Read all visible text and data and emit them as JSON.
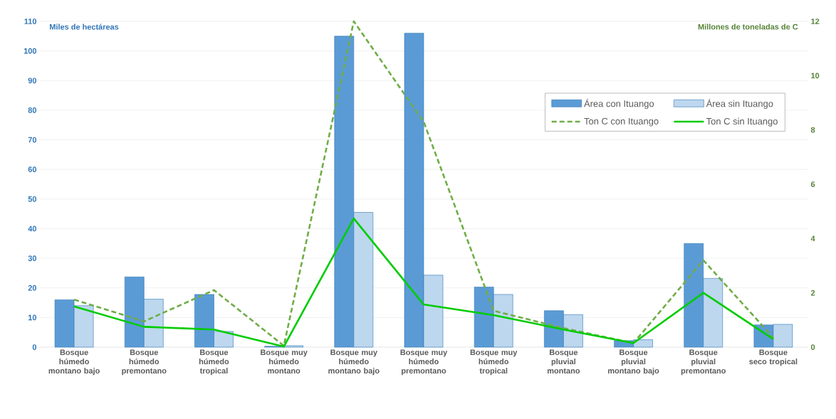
{
  "chart_data": {
    "type": "bar",
    "ylabel": "Miles de hectáreas",
    "y2label": "Millones de toneladas de C",
    "categories": [
      "Bosque húmedo montano bajo",
      "Bosque húmedo premontano",
      "Bosque húmedo tropical",
      "Bosque muy húmedo montano",
      "Bosque muy húmedo montano bajo",
      "Bosque muy húmedo premontano",
      "Bosque muy húmedo tropical",
      "Bosque pluvial montano",
      "Bosque pluvial montano bajo",
      "Bosque pluvial premontano",
      "Bosque seco tropical"
    ],
    "series": [
      {
        "name": "Área con Ituango",
        "color": "#5b9bd5",
        "values": [
          16,
          23.7,
          17.8,
          0.3,
          105,
          106,
          20.3,
          12.3,
          2.2,
          35,
          7.5
        ]
      },
      {
        "name": "Área sin Ituango",
        "color": "#bdd7ee",
        "values": [
          14,
          16.2,
          5.3,
          0.5,
          45.5,
          24.3,
          17.8,
          11,
          2.5,
          23.2,
          7.7
        ]
      },
      {
        "name": "Ton C con Ituango",
        "type": "line",
        "axis": "y2",
        "line_style": "dashed",
        "color": "#70ad47",
        "values": [
          1.75,
          0.95,
          2.1,
          0.05,
          12,
          8.3,
          1.34,
          0.7,
          0.15,
          3.2,
          0.35
        ]
      },
      {
        "name": "Ton C sin Ituango",
        "type": "line",
        "axis": "y2",
        "line_style": "solid",
        "color": "#00cc00",
        "values": [
          1.5,
          0.75,
          0.65,
          0.02,
          4.74,
          1.57,
          1.18,
          0.65,
          0.15,
          2.0,
          0.3
        ]
      }
    ],
    "ylim": [
      0,
      110
    ],
    "yticks": [
      0,
      10,
      20,
      30,
      40,
      50,
      60,
      70,
      80,
      90,
      100,
      110
    ],
    "y2lim": [
      0,
      12
    ],
    "y2ticks": [
      0,
      2,
      4,
      6,
      8,
      10,
      12
    ],
    "grid": "y",
    "legend": "top right",
    "marker": "none"
  }
}
